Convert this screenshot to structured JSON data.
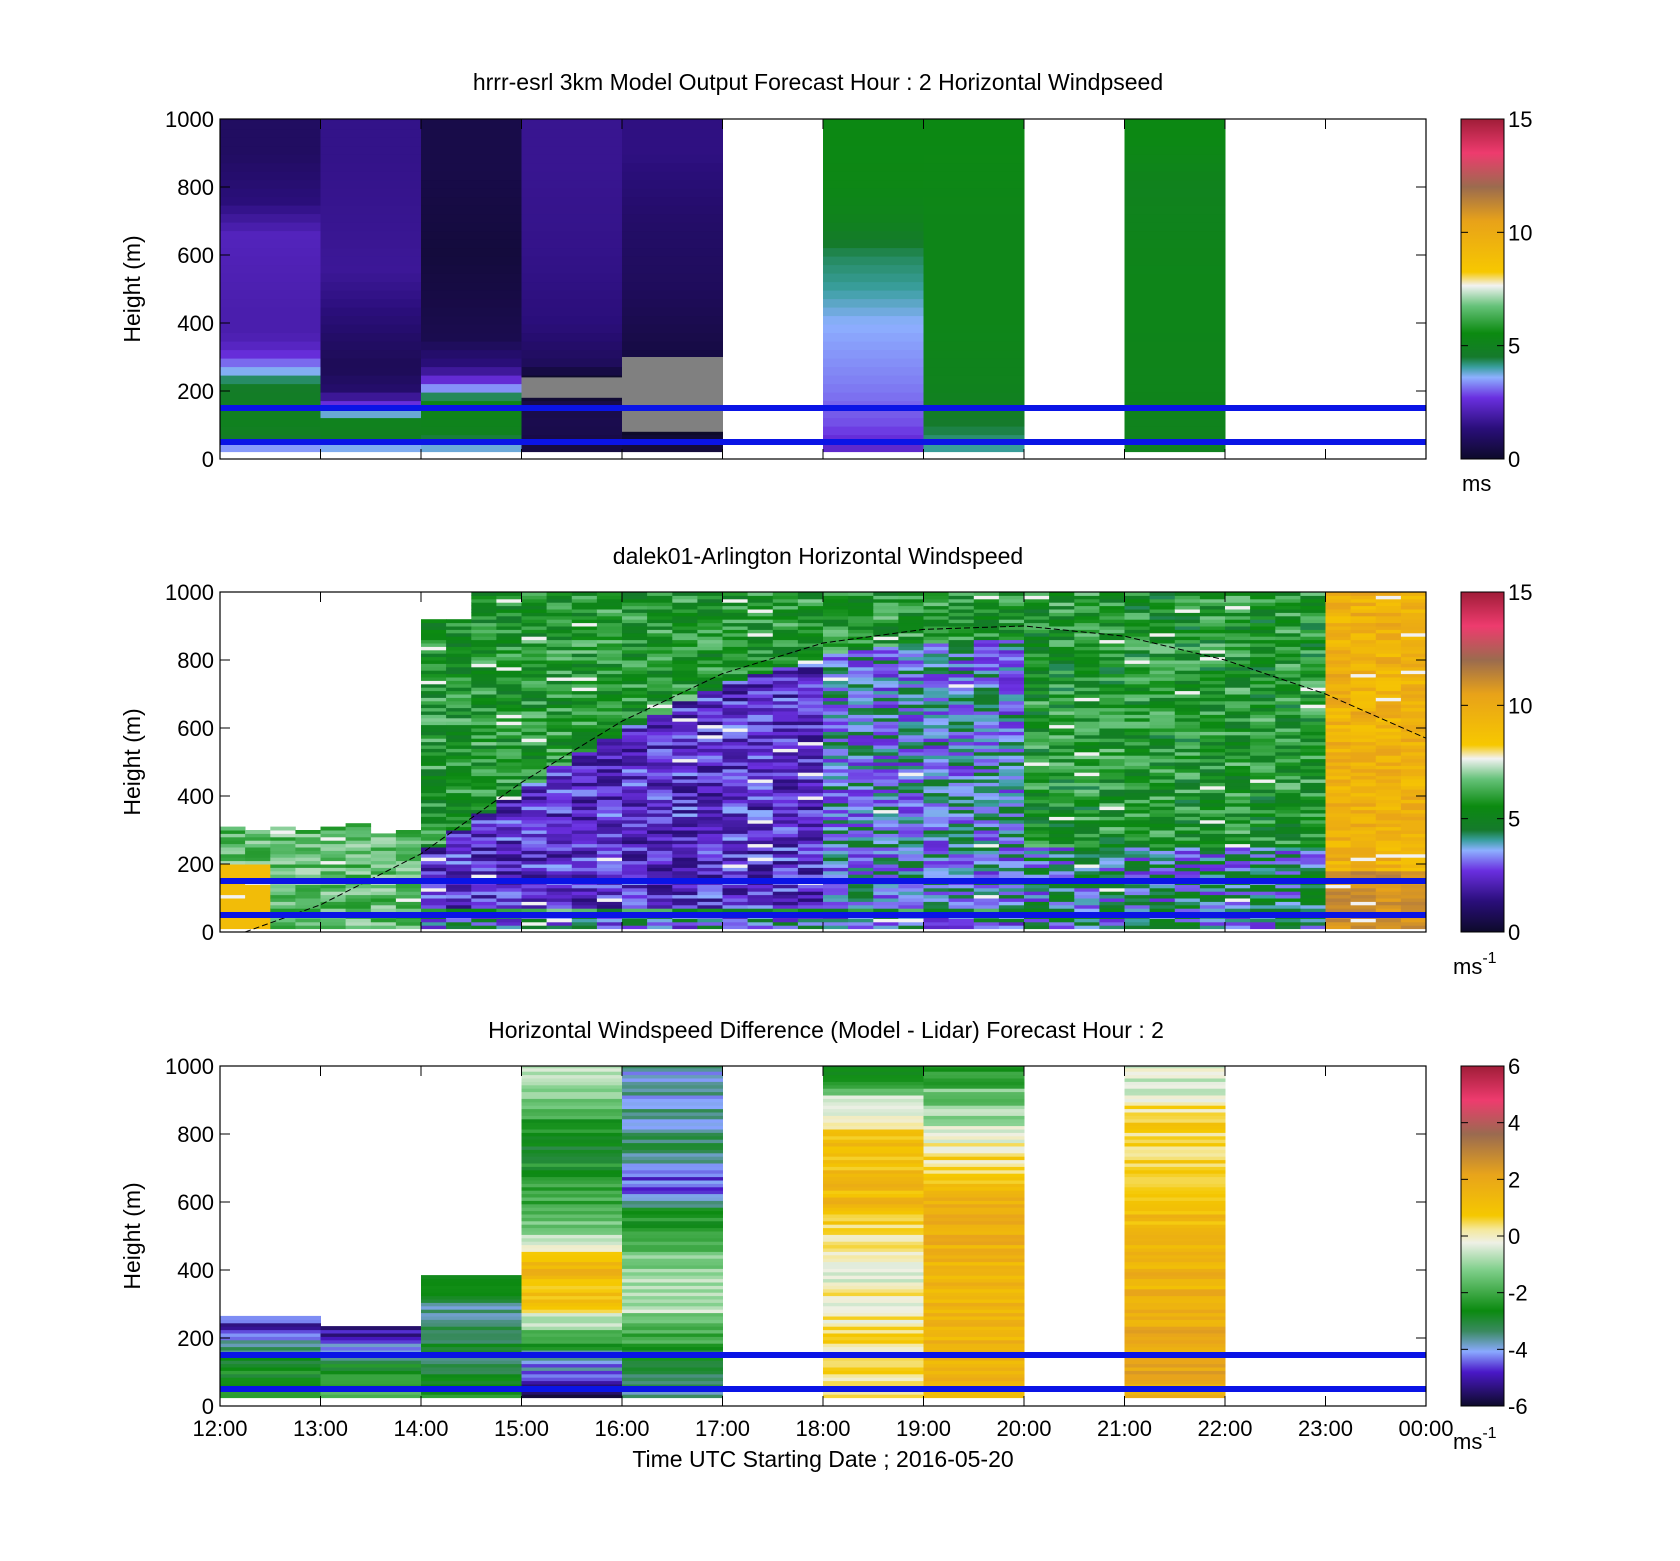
{
  "figure_xlabel": "Time UTC  Starting Date ; 2016-05-20",
  "x_ticks": [
    "12:00",
    "13:00",
    "14:00",
    "15:00",
    "16:00",
    "17:00",
    "18:00",
    "19:00",
    "20:00",
    "21:00",
    "22:00",
    "23:00",
    "00:00"
  ],
  "lines": {
    "color": "#0a14e6",
    "heights_m": [
      150,
      50
    ]
  },
  "chart_data": [
    {
      "type": "heatmap",
      "title": "hrrr-esrl 3km Model Output   Forecast Hour : 2 Horizontal Windpseed",
      "ylabel": "Height (m)",
      "ylim": [
        0,
        1000
      ],
      "y_ticks": [
        "0",
        "200",
        "400",
        "600",
        "800",
        "1000"
      ],
      "colorbar": {
        "min": 0,
        "max": 15,
        "ticks": [
          "0",
          "5",
          "10",
          "15"
        ],
        "unit": "ms"
      },
      "hourly_columns": [
        {
          "hour": "12:00",
          "profile_ms": [
            {
              "h": 25,
              "v": 2.8
            },
            {
              "h": 50,
              "v": 4.5
            },
            {
              "h": 100,
              "v": 5.0
            },
            {
              "h": 160,
              "v": 4.8
            },
            {
              "h": 220,
              "v": 4.6
            },
            {
              "h": 270,
              "v": 3.4
            },
            {
              "h": 320,
              "v": 2.4
            },
            {
              "h": 370,
              "v": 2.0
            },
            {
              "h": 440,
              "v": 2.0
            },
            {
              "h": 560,
              "v": 2.1
            },
            {
              "h": 660,
              "v": 2.2
            },
            {
              "h": 760,
              "v": 1.3
            },
            {
              "h": 900,
              "v": 0.9
            }
          ]
        },
        {
          "hour": "13:00",
          "profile_ms": [
            {
              "h": 25,
              "v": 3.2
            },
            {
              "h": 60,
              "v": 4.9
            },
            {
              "h": 110,
              "v": 5.0
            },
            {
              "h": 150,
              "v": 3.0
            },
            {
              "h": 200,
              "v": 1.1
            },
            {
              "h": 270,
              "v": 0.7
            },
            {
              "h": 360,
              "v": 1.0
            },
            {
              "h": 460,
              "v": 1.4
            },
            {
              "h": 560,
              "v": 1.7
            },
            {
              "h": 700,
              "v": 1.6
            },
            {
              "h": 900,
              "v": 1.5
            }
          ]
        },
        {
          "hour": "14:00",
          "profile_ms": [
            {
              "h": 25,
              "v": 3.5
            },
            {
              "h": 80,
              "v": 5.0
            },
            {
              "h": 160,
              "v": 5.2
            },
            {
              "h": 220,
              "v": 3.0
            },
            {
              "h": 270,
              "v": 1.4
            },
            {
              "h": 360,
              "v": 0.6
            },
            {
              "h": 600,
              "v": 0.3
            },
            {
              "h": 850,
              "v": 0.5
            }
          ]
        },
        {
          "hour": "15:00",
          "profile_ms": [
            {
              "h": 30,
              "v": 0.4
            },
            {
              "h": 100,
              "v": 0.6
            },
            {
              "h": 160,
              "v": 0.5
            },
            {
              "h": 220,
              "v": -0.3
            },
            {
              "h": 280,
              "v": 0.8
            },
            {
              "h": 400,
              "v": 1.3
            },
            {
              "h": 600,
              "v": 1.5
            },
            {
              "h": 850,
              "v": 1.6
            }
          ]
        },
        {
          "hour": "16:00",
          "profile_ms": [
            {
              "h": 50,
              "v": 0.3
            },
            {
              "h": 100,
              "v": -0.3
            },
            {
              "h": 200,
              "v": -0.3
            },
            {
              "h": 300,
              "v": 0.4
            },
            {
              "h": 500,
              "v": 0.8
            },
            {
              "h": 700,
              "v": 1.0
            },
            {
              "h": 900,
              "v": 1.4
            }
          ]
        },
        {
          "hour": "18:00",
          "profile_ms": [
            {
              "h": 30,
              "v": 2.4
            },
            {
              "h": 100,
              "v": 2.9
            },
            {
              "h": 200,
              "v": 3.2
            },
            {
              "h": 300,
              "v": 3.4
            },
            {
              "h": 400,
              "v": 3.6
            },
            {
              "h": 500,
              "v": 4.0
            },
            {
              "h": 600,
              "v": 4.3
            },
            {
              "h": 700,
              "v": 5.0
            },
            {
              "h": 800,
              "v": 5.3
            },
            {
              "h": 950,
              "v": 5.4
            }
          ]
        },
        {
          "hour": "19:00",
          "profile_ms": [
            {
              "h": 30,
              "v": 4.0
            },
            {
              "h": 100,
              "v": 4.5
            },
            {
              "h": 200,
              "v": 5.0
            },
            {
              "h": 400,
              "v": 5.2
            },
            {
              "h": 700,
              "v": 5.2
            },
            {
              "h": 950,
              "v": 5.4
            }
          ]
        },
        {
          "hour": "21:00",
          "profile_ms": [
            {
              "h": 30,
              "v": 5.0
            },
            {
              "h": 200,
              "v": 5.1
            },
            {
              "h": 500,
              "v": 5.2
            },
            {
              "h": 800,
              "v": 5.0
            },
            {
              "h": 950,
              "v": 5.4
            }
          ]
        }
      ],
      "missing_hours": [
        "17:00",
        "20:00",
        "22:00",
        "23:00"
      ]
    },
    {
      "type": "heatmap",
      "title": "dalek01-Arlington  Horizontal Windspeed",
      "ylabel": "Height (m)",
      "ylim": [
        0,
        1000
      ],
      "y_ticks": [
        "0",
        "200",
        "400",
        "600",
        "800",
        "1000"
      ],
      "colorbar": {
        "min": 0,
        "max": 15,
        "ticks": [
          "0",
          "5",
          "10",
          "15"
        ],
        "unit": "ms",
        "unit_exp": "-1"
      },
      "time_step_minutes": 15,
      "qualitative_profile": [
        {
          "period": "12:00-14:00",
          "coverage_top_m": 300,
          "windspeed_ms": "5-8, near-surface 9-10"
        },
        {
          "period": "14:00-17:00",
          "coverage_top_m": 1000,
          "windspeed_ms": "1-3 between 200-500 m, 4-6 above 600 m"
        },
        {
          "period": "17:00-20:00",
          "coverage_top_m": 1000,
          "windspeed_ms": "2-5 below 300 m, 4-7 aloft"
        },
        {
          "period": "20:00-23:00",
          "coverage_top_m": 1000,
          "windspeed_ms": "4-6"
        },
        {
          "period": "23:00-00:00",
          "coverage_top_m": 1000,
          "windspeed_ms": "8-11"
        }
      ],
      "dashed_curve": {
        "description": "boundary-layer height estimate",
        "peak_m": 900,
        "peak_time": "19:50",
        "points": [
          [
            "12:15",
            0
          ],
          [
            "13:00",
            80
          ],
          [
            "14:00",
            230
          ],
          [
            "15:00",
            440
          ],
          [
            "16:00",
            620
          ],
          [
            "17:00",
            760
          ],
          [
            "18:00",
            850
          ],
          [
            "19:00",
            890
          ],
          [
            "20:00",
            900
          ],
          [
            "21:00",
            870
          ],
          [
            "22:00",
            800
          ],
          [
            "23:00",
            700
          ],
          [
            "00:00",
            570
          ]
        ]
      }
    },
    {
      "type": "heatmap",
      "title": "Horizontal Windspeed Difference (Model - Lidar) Forecast Hour : 2",
      "ylabel": "Height (m)",
      "ylim": [
        0,
        1000
      ],
      "y_ticks": [
        "0",
        "200",
        "400",
        "600",
        "800",
        "1000"
      ],
      "colorbar": {
        "min": -6,
        "max": 6,
        "ticks": [
          "-6",
          "-4",
          "-2",
          "0",
          "2",
          "4",
          "6"
        ],
        "unit": "ms",
        "unit_exp": "-1"
      },
      "hourly_columns": [
        {
          "hour": "12:00",
          "top_m": 265,
          "profile_diff": [
            {
              "h": 30,
              "v": -2.2
            },
            {
              "h": 100,
              "v": -2.6
            },
            {
              "h": 170,
              "v": -3.2
            },
            {
              "h": 230,
              "v": -4.8
            }
          ]
        },
        {
          "hour": "13:00",
          "top_m": 235,
          "profile_diff": [
            {
              "h": 30,
              "v": -1.4
            },
            {
              "h": 100,
              "v": -2.4
            },
            {
              "h": 180,
              "v": -4.2
            },
            {
              "h": 220,
              "v": -5.2
            }
          ]
        },
        {
          "hour": "14:00",
          "top_m": 385,
          "profile_diff": [
            {
              "h": 30,
              "v": -2.6
            },
            {
              "h": 150,
              "v": -3.1
            },
            {
              "h": 280,
              "v": -3.6
            },
            {
              "h": 370,
              "v": -2.8
            }
          ]
        },
        {
          "hour": "15:00",
          "top_m": 1000,
          "profile_diff": [
            {
              "h": 50,
              "v": -5.3
            },
            {
              "h": 150,
              "v": -3.5
            },
            {
              "h": 300,
              "v": 0.8
            },
            {
              "h": 420,
              "v": 1.6
            },
            {
              "h": 500,
              "v": -0.8
            },
            {
              "h": 650,
              "v": -2.3
            },
            {
              "h": 800,
              "v": -2.7
            },
            {
              "h": 950,
              "v": -1.0
            }
          ]
        },
        {
          "hour": "16:00",
          "top_m": 1000,
          "profile_diff": [
            {
              "h": 50,
              "v": -3.8
            },
            {
              "h": 150,
              "v": -2.8
            },
            {
              "h": 300,
              "v": -0.6
            },
            {
              "h": 450,
              "v": -1.4
            },
            {
              "h": 560,
              "v": -2.4
            },
            {
              "h": 650,
              "v": -4.6
            },
            {
              "h": 750,
              "v": -3.4
            },
            {
              "h": 900,
              "v": -3.9
            }
          ]
        },
        {
          "hour": "18:00",
          "top_m": 1000,
          "profile_diff": [
            {
              "h": 50,
              "v": 0.4
            },
            {
              "h": 200,
              "v": 0.3
            },
            {
              "h": 400,
              "v": -0.2
            },
            {
              "h": 600,
              "v": 1.3
            },
            {
              "h": 800,
              "v": 1.0
            },
            {
              "h": 900,
              "v": -0.6
            },
            {
              "h": 970,
              "v": -2.3
            }
          ]
        },
        {
          "hour": "19:00",
          "top_m": 1000,
          "profile_diff": [
            {
              "h": 50,
              "v": 1.4
            },
            {
              "h": 300,
              "v": 1.6
            },
            {
              "h": 600,
              "v": 1.7
            },
            {
              "h": 780,
              "v": -0.2
            },
            {
              "h": 930,
              "v": -1.5
            },
            {
              "h": 970,
              "v": -2.1
            }
          ]
        },
        {
          "hour": "21:00",
          "top_m": 1000,
          "profile_diff": [
            {
              "h": 50,
              "v": 2.0
            },
            {
              "h": 300,
              "v": 1.7
            },
            {
              "h": 500,
              "v": 1.3
            },
            {
              "h": 700,
              "v": 0.8
            },
            {
              "h": 850,
              "v": 0.5
            },
            {
              "h": 950,
              "v": -0.5
            }
          ]
        }
      ],
      "missing_hours": [
        "17:00",
        "20:00",
        "22:00",
        "23:00"
      ]
    }
  ]
}
